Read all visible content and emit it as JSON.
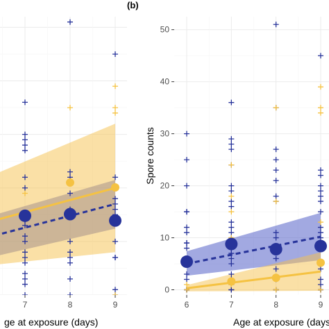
{
  "panel_label": "(b)",
  "colors": {
    "blue": "#27339a",
    "yellow": "#f5c242",
    "yellow_band": "#f6c24d",
    "blue_band": "#5563c8",
    "grid_major": "#ebebeb",
    "grid_minor": "#f5f5f5"
  },
  "chart_data": [
    {
      "panel": "left (partially cropped)",
      "type": "scatter",
      "xlabel": "Age at exposure (days)",
      "xlabel_visible_part": "ge at exposure (days)",
      "ylabel": "",
      "x_ticks": [
        7,
        8,
        9
      ],
      "xlim": [
        5.6,
        9.1
      ],
      "ylim": [
        0,
        52
      ],
      "grid": true,
      "series": [
        {
          "color": "blue",
          "kind": "points",
          "points": [
            [
              7,
              36
            ],
            [
              7,
              30
            ],
            [
              7,
              29
            ],
            [
              7,
              28
            ],
            [
              7,
              27
            ],
            [
              7,
              22
            ],
            [
              7,
              20
            ],
            [
              7,
              15
            ],
            [
              7,
              14
            ],
            [
              7,
              13
            ],
            [
              7,
              11
            ],
            [
              7,
              10
            ],
            [
              7,
              8
            ],
            [
              7,
              7
            ],
            [
              7,
              6
            ],
            [
              7,
              4
            ],
            [
              7,
              3
            ],
            [
              7,
              2
            ],
            [
              7,
              0
            ],
            [
              8,
              51
            ],
            [
              8,
              23
            ],
            [
              8,
              22
            ],
            [
              8,
              19
            ],
            [
              8,
              16
            ],
            [
              8,
              15
            ],
            [
              8,
              10
            ],
            [
              8,
              8
            ],
            [
              8,
              7
            ],
            [
              8,
              6
            ],
            [
              8,
              3
            ],
            [
              8,
              0
            ],
            [
              9,
              45
            ],
            [
              9,
              22
            ],
            [
              9,
              20
            ],
            [
              9,
              18
            ],
            [
              9,
              17
            ],
            [
              9,
              16
            ],
            [
              9,
              15
            ],
            [
              9,
              10
            ],
            [
              9,
              7
            ],
            [
              9,
              7
            ],
            [
              9,
              1
            ],
            [
              9,
              0
            ]
          ]
        },
        {
          "color": "yellow",
          "kind": "points",
          "points": [
            [
              7,
              19
            ],
            [
              8,
              35
            ],
            [
              8,
              21
            ],
            [
              9,
              39
            ],
            [
              9,
              35
            ],
            [
              9,
              34
            ],
            [
              9,
              0
            ]
          ]
        },
        {
          "color": "blue",
          "kind": "means",
          "points": [
            [
              7,
              14.8
            ],
            [
              8,
              15.1
            ],
            [
              9,
              13.9
            ]
          ]
        },
        {
          "color": "yellow",
          "kind": "means",
          "points": [
            [
              8,
              21.0
            ],
            [
              9,
              20.1
            ]
          ]
        },
        {
          "color": "blue",
          "kind": "fit_dashed",
          "line": [
            [
              5.6,
              9.5
            ],
            [
              9,
              17.0
            ]
          ],
          "band_upper": [
            [
              5.6,
              13.2
            ],
            [
              9,
              21.5
            ]
          ],
          "band_lower": [
            [
              5.6,
              5.8
            ],
            [
              9,
              12.4
            ]
          ]
        },
        {
          "color": "yellow",
          "kind": "fit_solid",
          "line": [
            [
              5.6,
              12.3
            ],
            [
              9,
              20.0
            ]
          ],
          "band_upper": [
            [
              5.6,
              20.0
            ],
            [
              9,
              32.0
            ]
          ],
          "band_lower": [
            [
              5.6,
              5.0
            ],
            [
              9,
              8.0
            ]
          ]
        }
      ]
    },
    {
      "panel": "(b)",
      "type": "scatter",
      "xlabel": "Age at exposure (days)",
      "ylabel": "Spore counts",
      "x_ticks": [
        6,
        7,
        8,
        9
      ],
      "y_ticks": [
        0,
        10,
        20,
        30,
        40,
        50
      ],
      "xlim": [
        5.85,
        9.05
      ],
      "ylim": [
        -1,
        52.5
      ],
      "grid": true,
      "series": [
        {
          "color": "blue",
          "kind": "points",
          "points": [
            [
              6,
              30
            ],
            [
              6,
              25
            ],
            [
              6,
              20
            ],
            [
              6,
              15
            ],
            [
              6,
              15
            ],
            [
              6,
              12
            ],
            [
              6,
              11
            ],
            [
              6,
              9
            ],
            [
              6,
              9
            ],
            [
              6,
              8
            ],
            [
              6,
              6
            ],
            [
              6,
              5
            ],
            [
              6,
              3
            ],
            [
              6,
              2
            ],
            [
              6,
              0
            ],
            [
              6,
              0
            ],
            [
              6,
              0
            ],
            [
              6,
              0
            ],
            [
              7,
              36
            ],
            [
              7,
              29
            ],
            [
              7,
              28
            ],
            [
              7,
              27
            ],
            [
              7,
              24
            ],
            [
              7,
              20
            ],
            [
              7,
              19
            ],
            [
              7,
              17
            ],
            [
              7,
              16
            ],
            [
              7,
              13
            ],
            [
              7,
              12
            ],
            [
              7,
              11
            ],
            [
              7,
              10
            ],
            [
              7,
              8
            ],
            [
              7,
              7
            ],
            [
              7,
              7
            ],
            [
              7,
              6
            ],
            [
              7,
              5
            ],
            [
              7,
              3
            ],
            [
              7,
              2
            ],
            [
              7,
              1
            ],
            [
              7,
              0
            ],
            [
              7,
              0
            ],
            [
              7,
              0
            ],
            [
              8,
              51
            ],
            [
              8,
              35
            ],
            [
              8,
              27
            ],
            [
              8,
              25
            ],
            [
              8,
              23
            ],
            [
              8,
              21
            ],
            [
              8,
              18
            ],
            [
              8,
              17
            ],
            [
              8,
              11
            ],
            [
              8,
              10
            ],
            [
              8,
              8
            ],
            [
              8,
              6
            ],
            [
              8,
              6
            ],
            [
              8,
              4
            ],
            [
              8,
              2
            ],
            [
              8,
              0
            ],
            [
              8,
              0
            ],
            [
              8,
              0
            ],
            [
              9,
              45
            ],
            [
              9,
              23
            ],
            [
              9,
              22
            ],
            [
              9,
              20
            ],
            [
              9,
              19
            ],
            [
              9,
              18
            ],
            [
              9,
              17
            ],
            [
              9,
              15
            ],
            [
              9,
              12
            ],
            [
              9,
              11
            ],
            [
              9,
              10
            ],
            [
              9,
              9
            ],
            [
              9,
              8
            ],
            [
              9,
              4
            ],
            [
              9,
              2
            ],
            [
              9,
              1
            ],
            [
              9,
              0
            ],
            [
              9,
              0
            ],
            [
              9,
              0
            ]
          ]
        },
        {
          "color": "yellow",
          "kind": "points",
          "points": [
            [
              6,
              1
            ],
            [
              6,
              0
            ],
            [
              7,
              24
            ],
            [
              7,
              18
            ],
            [
              7,
              15
            ],
            [
              7,
              10
            ],
            [
              7,
              1
            ],
            [
              8,
              35
            ],
            [
              8,
              17
            ],
            [
              8,
              0
            ],
            [
              9,
              39
            ],
            [
              9,
              35
            ],
            [
              9,
              34
            ],
            [
              9,
              13
            ],
            [
              9,
              0
            ]
          ]
        },
        {
          "color": "blue",
          "kind": "means",
          "points": [
            [
              6,
              5.4
            ],
            [
              7,
              8.8
            ],
            [
              8,
              7.8
            ],
            [
              9,
              8.4
            ]
          ]
        },
        {
          "color": "yellow",
          "kind": "means",
          "points": [
            [
              7,
              1.6
            ],
            [
              8,
              2.3
            ],
            [
              9,
              5.2
            ]
          ]
        },
        {
          "color": "blue",
          "kind": "fit_dashed",
          "line": [
            [
              6,
              5.0
            ],
            [
              9,
              10.2
            ]
          ],
          "band_upper": [
            [
              6,
              7.4
            ],
            [
              9,
              14.8
            ]
          ],
          "band_lower": [
            [
              6,
              2.7
            ],
            [
              9,
              5.7
            ]
          ]
        },
        {
          "color": "yellow",
          "kind": "fit_solid",
          "line": [
            [
              6,
              0.3
            ],
            [
              9,
              3.5
            ]
          ],
          "band_upper": [
            [
              6,
              0.9
            ],
            [
              9,
              7.2
            ]
          ],
          "band_lower": [
            [
              6,
              -0.3
            ],
            [
              9,
              -0.2
            ]
          ]
        }
      ]
    }
  ]
}
